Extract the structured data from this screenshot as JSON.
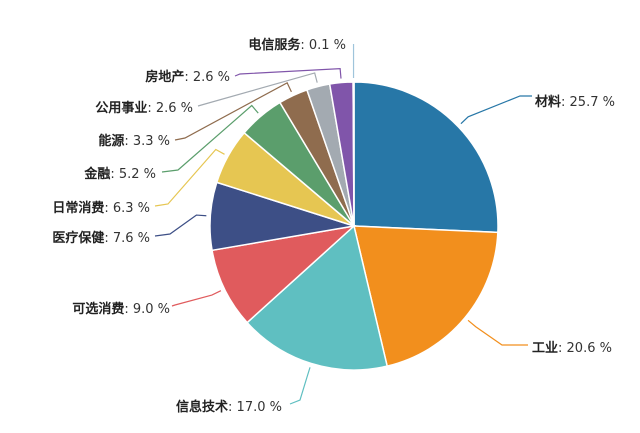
{
  "chart_data": {
    "type": "pie",
    "unit": "%",
    "start_angle_deg": 90,
    "direction": "clockwise",
    "slices": [
      {
        "name": "材料",
        "value": 25.7,
        "label": "25.7 %",
        "color": "#2777a7"
      },
      {
        "name": "工业",
        "value": 20.6,
        "label": "20.6 %",
        "color": "#f28f1d"
      },
      {
        "name": "信息技术",
        "value": 17.0,
        "label": "17.0 %",
        "color": "#5fbfc1"
      },
      {
        "name": "可选消费",
        "value": 9.0,
        "label": "9.0 %",
        "color": "#e05b5d"
      },
      {
        "name": "医疗保健",
        "value": 7.6,
        "label": "7.6 %",
        "color": "#3d4f86"
      },
      {
        "name": "日常消费",
        "value": 6.3,
        "label": "6.3 %",
        "color": "#e6c652"
      },
      {
        "name": "金融",
        "value": 5.2,
        "label": "5.2 %",
        "color": "#5b9e6c"
      },
      {
        "name": "能源",
        "value": 3.3,
        "label": "3.3 %",
        "color": "#8f6c4e"
      },
      {
        "name": "公用事业",
        "value": 2.6,
        "label": "2.6 %",
        "color": "#a3aab1"
      },
      {
        "name": "房地产",
        "value": 2.6,
        "label": "2.6 %",
        "color": "#8055aa"
      },
      {
        "name": "电信服务",
        "value": 0.1,
        "label": "0.1 %",
        "color": "#9fc4db"
      }
    ]
  }
}
